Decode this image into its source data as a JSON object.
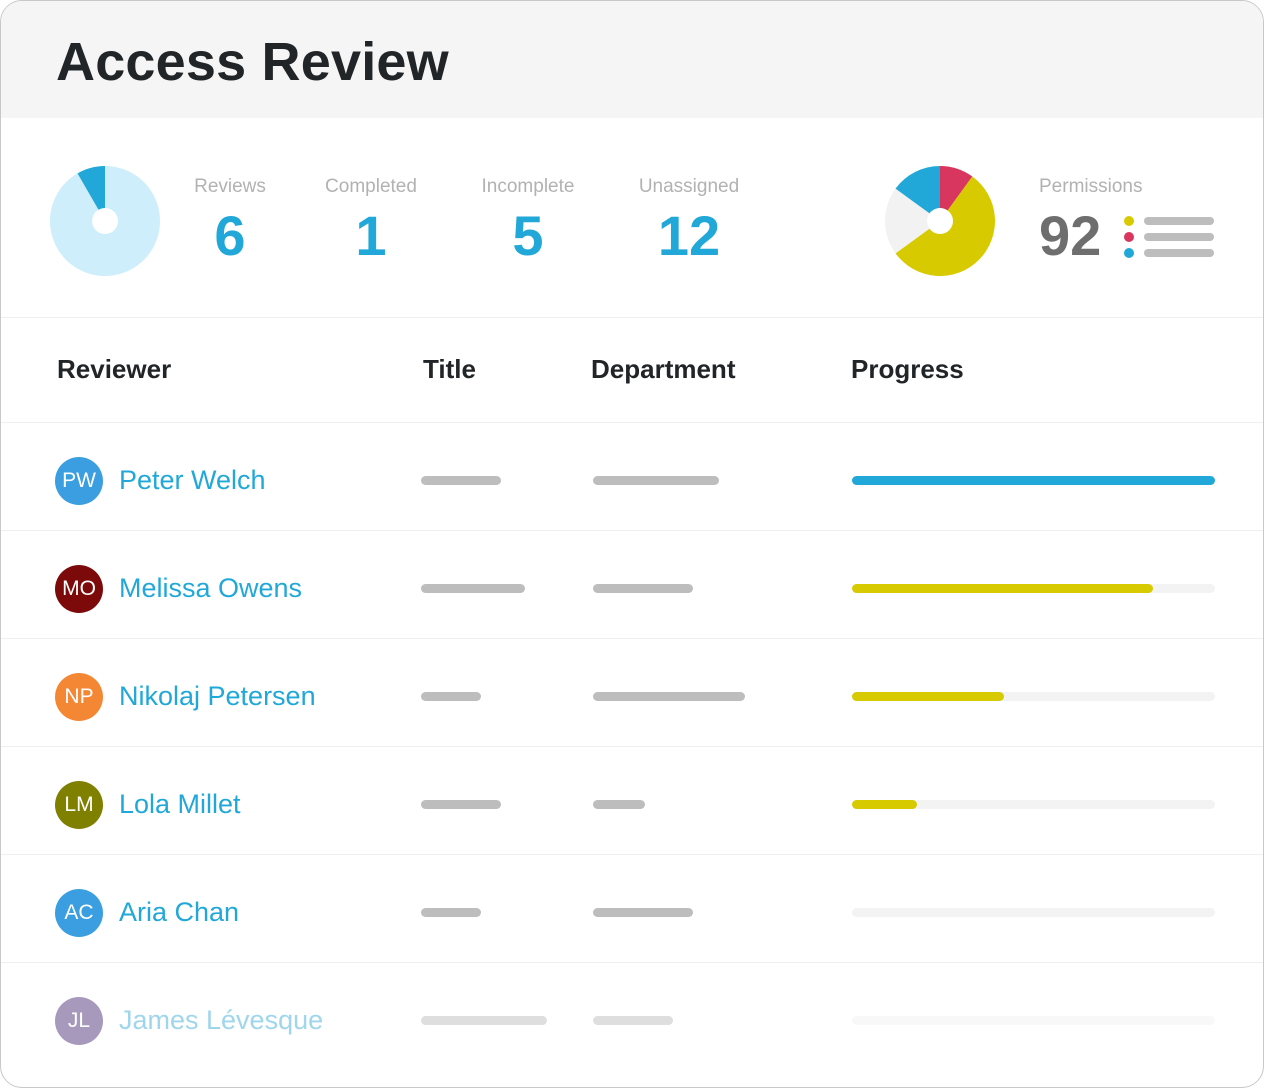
{
  "title": "Access Review",
  "colors": {
    "accent": "#21a8d8",
    "light_blue": "#cdeefa",
    "yellow": "#d8ca00",
    "red": "#d8365f",
    "gray_slice": "#f2f2f2",
    "placeholder": "#bdbdbd"
  },
  "summary": {
    "pie": {
      "completed_fraction": 0.0833,
      "remaining_fraction": 0.9167
    },
    "stats": [
      {
        "label": "Reviews",
        "value": "6"
      },
      {
        "label": "Completed",
        "value": "1"
      },
      {
        "label": "Incomplete",
        "value": "5"
      },
      {
        "label": "Unassigned",
        "value": "12"
      }
    ]
  },
  "permissions": {
    "label": "Permissions",
    "value": "92",
    "pie_fractions": {
      "red": 0.1,
      "yellow": 0.55,
      "gray": 0.2,
      "blue": 0.15
    },
    "legend_colors": [
      "#d8ca00",
      "#d8365f",
      "#21a8d8"
    ]
  },
  "table": {
    "headers": {
      "reviewer": "Reviewer",
      "title": "Title",
      "department": "Department",
      "progress": "Progress"
    },
    "rows": [
      {
        "initials": "PW",
        "name": "Peter Welch",
        "avatar_color": "#3a9ee0",
        "progress": 1.0,
        "progress_color": "#21a8d8",
        "faded": false
      },
      {
        "initials": "MO",
        "name": "Melissa Owens",
        "avatar_color": "#7d0a0a",
        "progress": 0.83,
        "progress_color": "#d8ca00",
        "faded": false
      },
      {
        "initials": "NP",
        "name": "Nikolaj Petersen",
        "avatar_color": "#f48733",
        "progress": 0.42,
        "progress_color": "#d8ca00",
        "faded": false
      },
      {
        "initials": "LM",
        "name": "Lola Millet",
        "avatar_color": "#7f7f00",
        "progress": 0.18,
        "progress_color": "#d8ca00",
        "faded": false
      },
      {
        "initials": "AC",
        "name": "Aria Chan",
        "avatar_color": "#3a9ee0",
        "progress": 0,
        "progress_color": "#d8ca00",
        "faded": false
      },
      {
        "initials": "JL",
        "name": "James Lévesque",
        "avatar_color": "#5e4685",
        "progress": 0,
        "progress_color": "#d8ca00",
        "faded": true
      }
    ]
  }
}
